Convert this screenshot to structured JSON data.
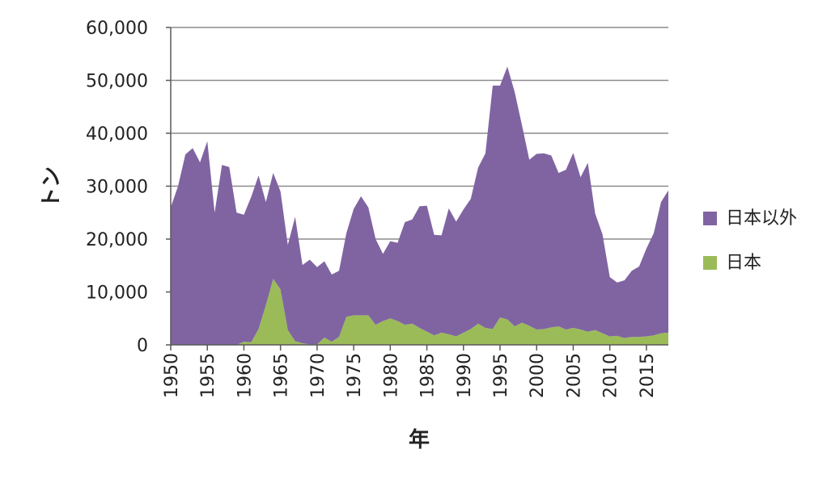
{
  "chart_data": {
    "type": "area",
    "stacked": true,
    "xlabel": "年",
    "ylabel": "トン",
    "ylim": [
      0,
      60000
    ],
    "yticks": [
      0,
      10000,
      20000,
      30000,
      40000,
      50000,
      60000
    ],
    "ytick_labels": [
      "0",
      "10,000",
      "20,000",
      "30,000",
      "40,000",
      "50,000",
      "60,000"
    ],
    "xlim": [
      1950,
      2018
    ],
    "xticks": [
      1950,
      1955,
      1960,
      1965,
      1970,
      1975,
      1980,
      1985,
      1990,
      1995,
      2000,
      2005,
      2010,
      2015
    ],
    "xtick_labels": [
      "1950",
      "1955",
      "1960",
      "1965",
      "1970",
      "1975",
      "1980",
      "1985",
      "1990",
      "1995",
      "2000",
      "2005",
      "2010",
      "2015"
    ],
    "grid": "horizontal",
    "legend_position": "right",
    "x": [
      1950,
      1951,
      1952,
      1953,
      1954,
      1955,
      1956,
      1957,
      1958,
      1959,
      1960,
      1961,
      1962,
      1963,
      1964,
      1965,
      1966,
      1967,
      1968,
      1969,
      1970,
      1971,
      1972,
      1973,
      1974,
      1975,
      1976,
      1977,
      1978,
      1979,
      1980,
      1981,
      1982,
      1983,
      1984,
      1985,
      1986,
      1987,
      1988,
      1989,
      1990,
      1991,
      1992,
      1993,
      1994,
      1995,
      1996,
      1997,
      1998,
      1999,
      2000,
      2001,
      2002,
      2003,
      2004,
      2005,
      2006,
      2007,
      2008,
      2009,
      2010,
      2011,
      2012,
      2013,
      2014,
      2015,
      2016,
      2017,
      2018
    ],
    "series": [
      {
        "name": "日本",
        "color": "#9bbb59",
        "values": [
          0,
          0,
          0,
          0,
          0,
          0,
          0,
          0,
          0,
          0,
          600,
          500,
          3000,
          7500,
          12500,
          10500,
          2800,
          700,
          300,
          100,
          100,
          1400,
          600,
          1500,
          5300,
          5600,
          5600,
          5600,
          3800,
          4500,
          5000,
          4500,
          3800,
          4000,
          3200,
          2500,
          1800,
          2300,
          2000,
          1600,
          2300,
          3000,
          4000,
          3200,
          3000,
          5200,
          4800,
          3500,
          4200,
          3600,
          2900,
          3000,
          3300,
          3500,
          2900,
          3200,
          2900,
          2500,
          2800,
          2200,
          1600,
          1700,
          1300,
          1500,
          1500,
          1600,
          1800,
          2200,
          2300
        ]
      },
      {
        "name": "日本以外",
        "color": "#8064a2",
        "values": [
          26000,
          30000,
          36000,
          37200,
          34500,
          38500,
          25000,
          34000,
          33600,
          25000,
          24000,
          27500,
          29000,
          19500,
          20000,
          18500,
          16100,
          23500,
          14800,
          16000,
          14600,
          14400,
          12700,
          12500,
          15800,
          20100,
          22500,
          20400,
          16200,
          12700,
          14600,
          14800,
          19400,
          19700,
          23000,
          23800,
          19000,
          18400,
          23800,
          21700,
          23300,
          24600,
          29500,
          33000,
          46000,
          43800,
          47800,
          44300,
          37300,
          31400,
          33200,
          33200,
          32500,
          29000,
          30200,
          33100,
          28800,
          31900,
          22000,
          18700,
          11200,
          10100,
          10900,
          12500,
          13300,
          16600,
          19300,
          24800,
          26900
        ]
      }
    ]
  }
}
